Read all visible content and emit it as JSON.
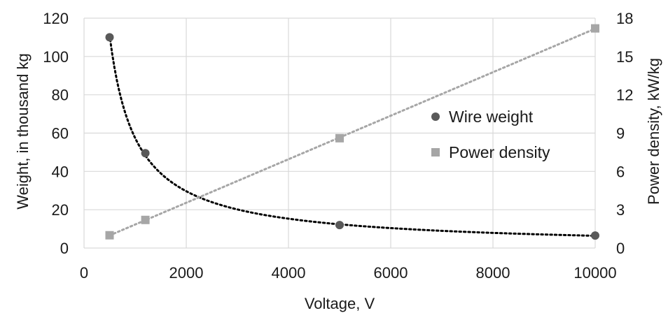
{
  "chart_data": {
    "type": "scatter",
    "xlabel": "Voltage, V",
    "ylabel_left": "Weight, in thousand kg",
    "ylabel_right": "Power density, kW/kg",
    "xlim": [
      0,
      10000
    ],
    "ylim_left": [
      0,
      120
    ],
    "ylim_right": [
      0,
      18
    ],
    "x_ticks": [
      "0",
      "2000",
      "4000",
      "6000",
      "8000",
      "10000"
    ],
    "y_left_ticks": [
      "0",
      "20",
      "40",
      "60",
      "80",
      "100",
      "120"
    ],
    "y_right_ticks": [
      "0",
      "3",
      "6",
      "9",
      "12",
      "15",
      "18"
    ],
    "grid": true,
    "legend_position": "right",
    "series": [
      {
        "name": "Wire weight",
        "axis": "left",
        "marker": "circle",
        "color": "#595959",
        "trendline": "power",
        "trendline_color": "#000000",
        "x": [
          500,
          1200,
          5000,
          10000
        ],
        "y": [
          110,
          49.5,
          12,
          6.5
        ]
      },
      {
        "name": "Power density",
        "axis": "right",
        "marker": "square",
        "color": "#a6a6a6",
        "trendline": "linear",
        "trendline_color": "#a6a6a6",
        "x": [
          500,
          1200,
          5000,
          10000
        ],
        "y": [
          1,
          2.2,
          8.6,
          17.2
        ]
      }
    ]
  }
}
